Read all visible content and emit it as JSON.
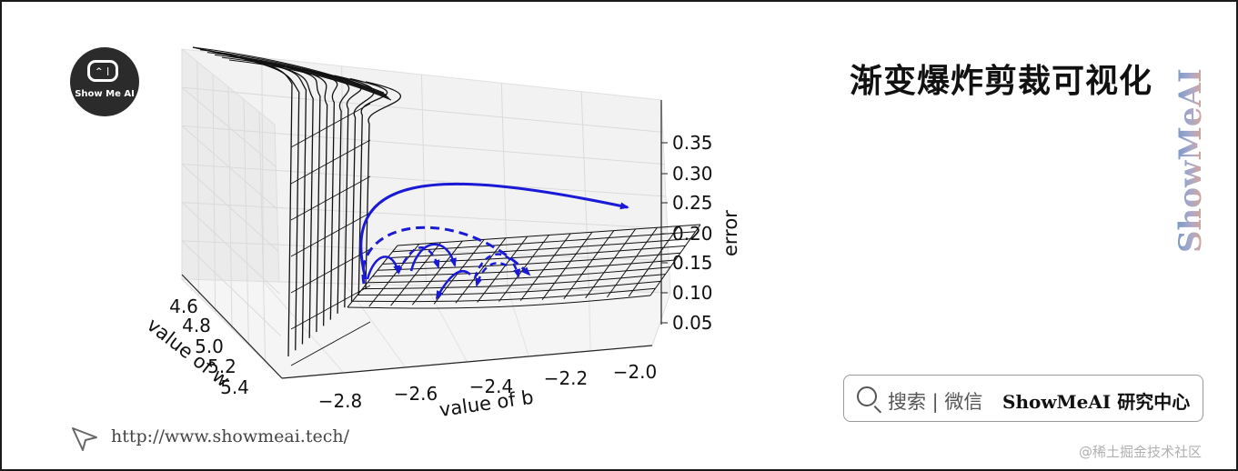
{
  "brand": {
    "logo_text": "Show Me AI",
    "title": "渐变爆炸剪裁可视化",
    "side_brand": "ShowMeAI",
    "search_label": "搜索 | 微信",
    "search_brand": "ShowMeAI 研究中心",
    "url": "http://www.showmeai.tech/",
    "watermark": "@稀土掘金技术社区"
  },
  "chart_data": {
    "type": "surface",
    "xlabel": "value of b",
    "ylabel": "value of w",
    "zlabel": "error",
    "x_ticks": [
      "−2.8",
      "−2.6",
      "−2.4",
      "−2.2",
      "−2.0"
    ],
    "y_ticks": [
      "4.6",
      "4.8",
      "5.0",
      "5.2",
      "5.4"
    ],
    "z_ticks": [
      "0.35",
      "0.30",
      "0.25",
      "0.20",
      "0.15",
      "0.10",
      "0.05"
    ],
    "xlim": [
      -2.9,
      -1.95
    ],
    "ylim": [
      4.5,
      5.5
    ],
    "zlim": [
      0.03,
      0.38
    ],
    "grid": true,
    "series": [
      {
        "style": "solid",
        "color": "#1a1ad6"
      },
      {
        "style": "dashed",
        "color": "#1a1ad6"
      }
    ]
  }
}
